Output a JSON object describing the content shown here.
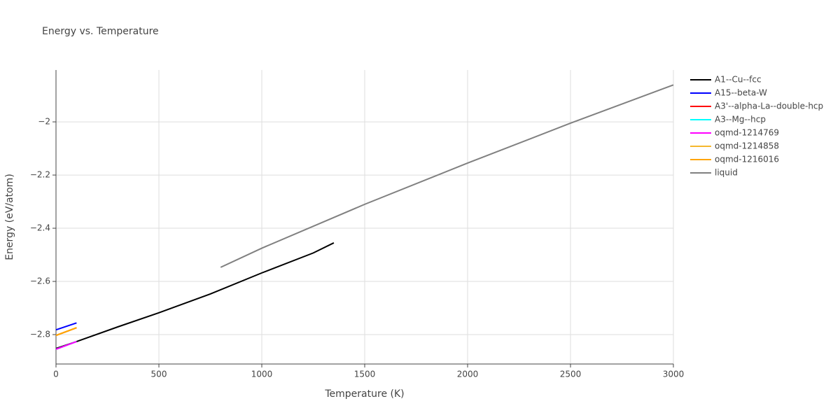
{
  "chart_data": {
    "type": "line",
    "title": "Energy vs. Temperature",
    "x_label": "Temperature (K)",
    "y_label": "Energy (eV/atom)",
    "xlim": [
      0,
      3000
    ],
    "xticks": [
      0,
      500,
      1000,
      1500,
      2000,
      2500,
      3000
    ],
    "ylim": [
      -2.9105,
      -1.805
    ],
    "yticks": [
      {
        "value": -2.8,
        "label": "−2.8"
      },
      {
        "value": -2.6,
        "label": "−2.6"
      },
      {
        "value": -2.4,
        "label": "−2.4"
      },
      {
        "value": -2.2,
        "label": "−2.2"
      },
      {
        "value": -2,
        "label": "−2"
      }
    ],
    "grid": true,
    "series": [
      {
        "name": "A1--Cu--fcc",
        "color": "#000000",
        "x": [
          0,
          100,
          300,
          500,
          750,
          1000,
          1250,
          1350
        ],
        "values": [
          -2.852,
          -2.826,
          -2.771,
          -2.718,
          -2.647,
          -2.568,
          -2.493,
          -2.455
        ]
      },
      {
        "name": "A15--beta-W",
        "color": "#0000ff",
        "x": [
          0,
          100
        ],
        "values": [
          -2.782,
          -2.756
        ]
      },
      {
        "name": "A3'--alpha-La--double-hcp",
        "color": "#ff0000",
        "x": [
          0,
          100
        ],
        "values": [
          -2.803,
          -2.774
        ]
      },
      {
        "name": "A3--Mg--hcp",
        "color": "#00ffff",
        "x": [
          0,
          100
        ],
        "values": [
          -2.855,
          -2.826
        ]
      },
      {
        "name": "oqmd-1214769",
        "color": "#ff00ff",
        "x": [
          0,
          100
        ],
        "values": [
          -2.855,
          -2.826
        ]
      },
      {
        "name": "oqmd-1214858",
        "color": "#f5b82e",
        "x": [
          0,
          100
        ],
        "values": [
          -2.803,
          -2.774
        ]
      },
      {
        "name": "oqmd-1216016",
        "color": "#ffa500",
        "x": [
          0,
          100
        ],
        "values": [
          -2.803,
          -2.774
        ]
      },
      {
        "name": "liquid",
        "color": "#808080",
        "x": [
          800,
          1000,
          1500,
          2000,
          2500,
          3000
        ],
        "values": [
          -2.547,
          -2.475,
          -2.31,
          -2.155,
          -2.005,
          -1.861
        ]
      }
    ]
  }
}
